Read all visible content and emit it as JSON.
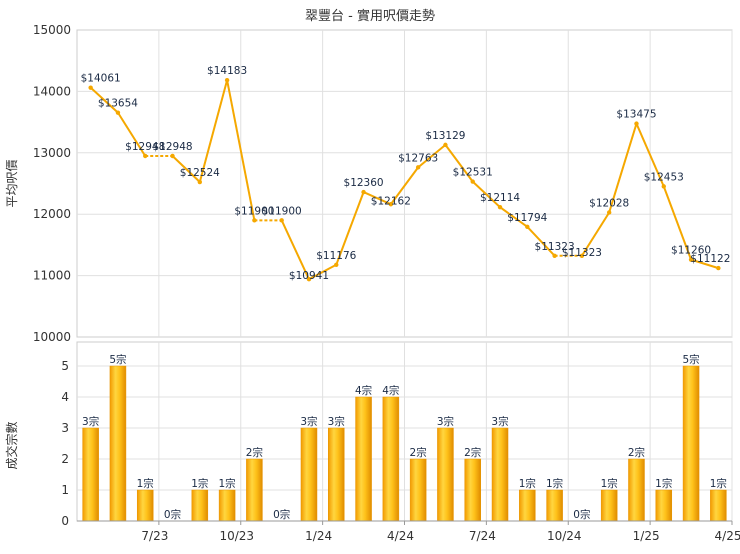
{
  "chart_data": [
    {
      "type": "line",
      "title": "翠豐台 - 實用呎價走勢",
      "ylabel": "平均呎價",
      "ylim": [
        10000,
        15000
      ],
      "y_ticks": [
        "10000",
        "11000",
        "12000",
        "13000",
        "14000",
        "15000"
      ],
      "grid": true,
      "color": "#f5a800",
      "series": [
        {
          "values": [
            14061,
            13654,
            12948,
            12948,
            12524,
            14183,
            11900,
            11900,
            10941,
            11176,
            12360,
            12162,
            12763,
            13129,
            12531,
            12114,
            11794,
            11323,
            11323,
            12028,
            13475,
            12453,
            11260,
            11122
          ],
          "labels": [
            "$14061",
            "$13654",
            "$12948",
            "$12948",
            "$12524",
            "$14183",
            "$11900",
            "$11900",
            "$10941",
            "$11176",
            "$12360",
            "$12162",
            "$12763",
            "$13129",
            "$12531",
            "$12114",
            "$11794",
            "$11323",
            "$11323",
            "$12028",
            "$13475",
            "$12453",
            "$11260",
            "$11122"
          ],
          "estimated": [
            false,
            false,
            false,
            true,
            false,
            false,
            false,
            true,
            false,
            false,
            false,
            false,
            false,
            false,
            false,
            false,
            false,
            false,
            true,
            false,
            false,
            false,
            false,
            false
          ]
        }
      ]
    },
    {
      "type": "bar",
      "ylabel": "成交宗數",
      "ylim": [
        0,
        5
      ],
      "y_ticks": [
        "0",
        "1",
        "2",
        "3",
        "4",
        "5"
      ],
      "x_ticks": [
        {
          "label": "7/23",
          "index": 2
        },
        {
          "label": "10/23",
          "index": 5
        },
        {
          "label": "1/24",
          "index": 8
        },
        {
          "label": "4/24",
          "index": 11
        },
        {
          "label": "7/24",
          "index": 14
        },
        {
          "label": "10/24",
          "index": 17
        },
        {
          "label": "1/25",
          "index": 20
        },
        {
          "label": "4/25",
          "index": 23
        }
      ],
      "values": [
        3,
        5,
        1,
        0,
        1,
        1,
        2,
        0,
        3,
        3,
        4,
        4,
        2,
        3,
        2,
        3,
        1,
        1,
        0,
        1,
        2,
        1,
        5,
        1
      ],
      "labels": [
        "3宗",
        "5宗",
        "1宗",
        "0宗",
        "1宗",
        "1宗",
        "2宗",
        "0宗",
        "3宗",
        "3宗",
        "4宗",
        "4宗",
        "2宗",
        "3宗",
        "2宗",
        "3宗",
        "1宗",
        "1宗",
        "0宗",
        "1宗",
        "2宗",
        "1宗",
        "5宗",
        "1宗"
      ],
      "color": "#f5a800"
    }
  ]
}
